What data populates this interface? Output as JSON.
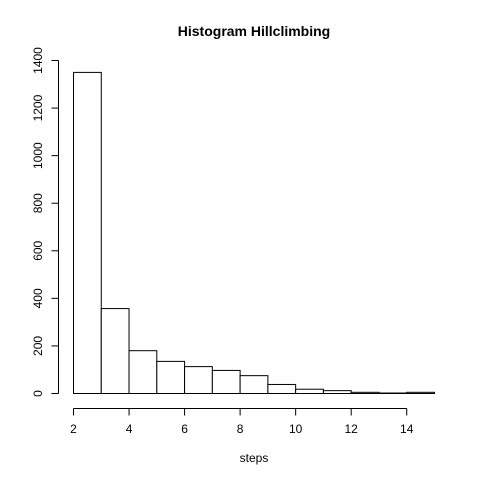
{
  "chart_data": {
    "type": "bar",
    "title": "Histogram Hillclimbing",
    "xlabel": "steps",
    "ylabel": "",
    "bins": [
      [
        2,
        3
      ],
      [
        3,
        4
      ],
      [
        4,
        5
      ],
      [
        5,
        6
      ],
      [
        6,
        7
      ],
      [
        7,
        8
      ],
      [
        8,
        9
      ],
      [
        9,
        10
      ],
      [
        10,
        11
      ],
      [
        11,
        12
      ],
      [
        12,
        13
      ],
      [
        13,
        14
      ],
      [
        14,
        15
      ]
    ],
    "values": [
      1350,
      357,
      180,
      135,
      113,
      97,
      75,
      38,
      18,
      12,
      5,
      2,
      5
    ],
    "xticks": [
      2,
      4,
      6,
      8,
      10,
      12,
      14
    ],
    "yticks": [
      0,
      200,
      400,
      600,
      800,
      1000,
      1200,
      1400
    ],
    "xlim": [
      2,
      15
    ],
    "ylim": [
      0,
      1400
    ],
    "grid": false,
    "colors": {
      "bar_fill": "#ffffff",
      "bar_stroke": "#000000"
    }
  }
}
